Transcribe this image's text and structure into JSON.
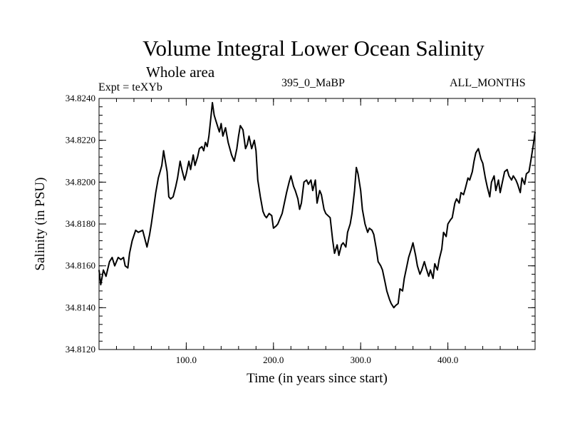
{
  "header": {
    "title": "Volume Integral Lower Ocean Salinity",
    "subtitle": "Whole area",
    "experiment": "Expt = teXYb",
    "run": "395_0_MaBP",
    "months": "ALL_MONTHS"
  },
  "chart_data": {
    "type": "line",
    "title": "Volume Integral Lower Ocean Salinity",
    "subtitle": "Whole area",
    "xlabel": "Time (in years since start)",
    "ylabel": "Salinity (in PSU)",
    "xlim": [
      0,
      500
    ],
    "ylim": [
      34.812,
      34.824
    ],
    "x_ticks": [
      100,
      200,
      300,
      400
    ],
    "x_tick_labels": [
      "100.0",
      "200.0",
      "300.0",
      "400.0"
    ],
    "y_ticks": [
      34.812,
      34.814,
      34.816,
      34.818,
      34.82,
      34.822,
      34.824
    ],
    "y_tick_labels": [
      "34.8120",
      "34.8140",
      "34.8160",
      "34.8180",
      "34.8200",
      "34.8220",
      "34.8240"
    ],
    "x_minor_step": 20,
    "y_minor_step": 0.0004,
    "grid": false,
    "line_color": "#000000",
    "series": [
      {
        "name": "",
        "x": [
          0,
          2,
          5,
          8,
          12,
          15,
          18,
          22,
          25,
          28,
          30,
          33,
          35,
          38,
          42,
          45,
          50,
          55,
          58,
          60,
          62,
          65,
          68,
          70,
          72,
          74,
          76,
          78,
          80,
          82,
          85,
          88,
          90,
          93,
          95,
          98,
          100,
          103,
          105,
          108,
          110,
          113,
          115,
          118,
          120,
          122,
          124,
          126,
          128,
          130,
          132,
          135,
          138,
          140,
          142,
          145,
          148,
          150,
          152,
          155,
          158,
          160,
          162,
          165,
          168,
          170,
          172,
          175,
          178,
          180,
          182,
          185,
          188,
          190,
          192,
          195,
          198,
          200,
          203,
          205,
          210,
          215,
          218,
          220,
          223,
          225,
          228,
          230,
          232,
          235,
          238,
          240,
          243,
          245,
          248,
          250,
          253,
          255,
          258,
          260,
          265,
          268,
          270,
          273,
          275,
          278,
          280,
          283,
          285,
          288,
          290,
          293,
          295,
          297,
          300,
          302,
          305,
          308,
          310,
          313,
          315,
          318,
          320,
          323,
          325,
          328,
          330,
          333,
          335,
          338,
          340,
          343,
          345,
          348,
          350,
          353,
          355,
          358,
          360,
          363,
          365,
          368,
          370,
          373,
          375,
          378,
          380,
          383,
          385,
          388,
          390,
          393,
          395,
          398,
          400,
          403,
          405,
          408,
          410,
          413,
          415,
          418,
          420,
          423,
          425,
          428,
          430,
          432,
          435,
          438,
          440,
          443,
          445,
          448,
          450,
          453,
          455,
          458,
          460,
          463,
          465,
          468,
          470,
          473,
          475,
          478,
          480,
          483,
          485,
          488,
          490,
          493,
          495,
          498,
          500
        ],
        "y": [
          34.8158,
          34.8151,
          34.8158,
          34.8155,
          34.8162,
          34.8164,
          34.816,
          34.8164,
          34.8163,
          34.8164,
          34.816,
          34.8159,
          34.8166,
          34.8172,
          34.8177,
          34.8176,
          34.8177,
          34.8169,
          34.8175,
          34.818,
          34.8186,
          34.8195,
          34.8202,
          34.8205,
          34.8208,
          34.8215,
          34.821,
          34.8205,
          34.8193,
          34.8192,
          34.8193,
          34.8198,
          34.8202,
          34.821,
          34.8206,
          34.8201,
          34.8204,
          34.821,
          34.8206,
          34.8213,
          34.8208,
          34.8212,
          34.8216,
          34.8217,
          34.8215,
          34.8219,
          34.8217,
          34.8222,
          34.823,
          34.8238,
          34.8232,
          34.8228,
          34.8224,
          34.8228,
          34.8222,
          34.8226,
          34.8219,
          34.8216,
          34.8213,
          34.821,
          34.8216,
          34.8222,
          34.8227,
          34.8225,
          34.8216,
          34.8218,
          34.8222,
          34.8216,
          34.822,
          34.8215,
          34.8201,
          34.8193,
          34.8186,
          34.8184,
          34.8183,
          34.8185,
          34.8184,
          34.8178,
          34.8179,
          34.818,
          34.8185,
          34.8195,
          34.82,
          34.8203,
          34.8198,
          34.8196,
          34.8192,
          34.8187,
          34.819,
          34.82,
          34.8201,
          34.8199,
          34.8201,
          34.8196,
          34.8201,
          34.819,
          34.8196,
          34.8194,
          34.8187,
          34.8185,
          34.8183,
          34.8172,
          34.8166,
          34.817,
          34.8165,
          34.817,
          34.8171,
          34.8169,
          34.8176,
          34.818,
          34.8185,
          34.8196,
          34.8207,
          34.8204,
          34.8196,
          34.8187,
          34.818,
          34.8176,
          34.8178,
          34.8177,
          34.8175,
          34.8168,
          34.8162,
          34.816,
          34.8158,
          34.8152,
          34.8148,
          34.8144,
          34.8142,
          34.814,
          34.8141,
          34.8142,
          34.8149,
          34.8148,
          34.8154,
          34.816,
          34.8164,
          34.8168,
          34.8171,
          34.8165,
          34.816,
          34.8156,
          34.8158,
          34.8162,
          34.8159,
          34.8155,
          34.8158,
          34.8154,
          34.8161,
          34.8158,
          34.8163,
          34.8168,
          34.8176,
          34.8174,
          34.818,
          34.8182,
          34.8183,
          34.819,
          34.8192,
          34.819,
          34.8195,
          34.8194,
          34.8197,
          34.8202,
          34.8201,
          34.8205,
          34.821,
          34.8214,
          34.8216,
          34.8211,
          34.8209,
          34.8202,
          34.8198,
          34.8193,
          34.82,
          34.8203,
          34.8196,
          34.8201,
          34.8195,
          34.8201,
          34.8205,
          34.8206,
          34.8203,
          34.8201,
          34.8203,
          34.8201,
          34.8199,
          34.8195,
          34.8202,
          34.8199,
          34.8204,
          34.8205,
          34.821,
          34.8218,
          34.8224
        ]
      }
    ]
  }
}
